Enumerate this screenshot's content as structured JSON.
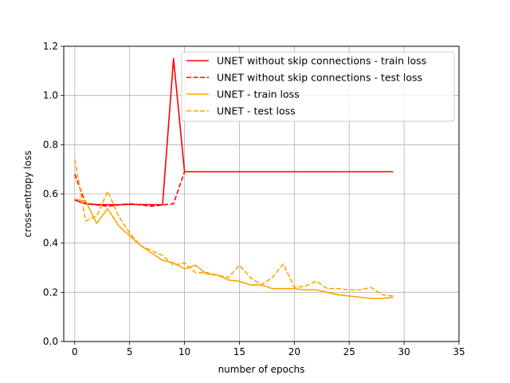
{
  "chart_data": {
    "type": "line",
    "xlabel": "number of epochs",
    "ylabel": "cross-entropy loss",
    "xlim": [
      -1,
      35
    ],
    "ylim": [
      0.0,
      1.2
    ],
    "xticks": [
      0,
      5,
      10,
      15,
      20,
      25,
      30,
      35
    ],
    "yticks": [
      0.0,
      0.2,
      0.4,
      0.6,
      0.8,
      1.0,
      1.2
    ],
    "grid": true,
    "legend_position": "top-right",
    "x": [
      0,
      1,
      2,
      3,
      4,
      5,
      6,
      7,
      8,
      9,
      10,
      11,
      12,
      13,
      14,
      15,
      16,
      17,
      18,
      19,
      20,
      21,
      22,
      23,
      24,
      25,
      26,
      27,
      28,
      29
    ],
    "series": [
      {
        "name": "UNET without skip connections - train loss",
        "color": "#ff0000",
        "dash": "solid",
        "values": [
          0.575,
          0.56,
          0.557,
          0.556,
          0.556,
          0.557,
          0.557,
          0.556,
          0.556,
          1.15,
          0.69,
          0.69,
          0.69,
          0.69,
          0.69,
          0.69,
          0.69,
          0.69,
          0.69,
          0.69,
          0.69,
          0.69,
          0.69,
          0.69,
          0.69,
          0.69,
          0.69,
          0.69,
          0.69,
          0.69
        ]
      },
      {
        "name": "UNET without skip connections - test loss",
        "color": "#ff0000",
        "dash": "dashed",
        "values": [
          0.68,
          0.56,
          0.555,
          0.55,
          0.555,
          0.56,
          0.555,
          0.55,
          0.555,
          0.56,
          0.69,
          0.69,
          0.69,
          0.69,
          0.69,
          0.69,
          0.69,
          0.69,
          0.69,
          0.69,
          0.69,
          0.69,
          0.69,
          0.69,
          0.69,
          0.69,
          0.69,
          0.69,
          0.69,
          0.69
        ]
      },
      {
        "name": "UNET - train loss",
        "color": "#ffa500",
        "dash": "solid",
        "values": [
          0.58,
          0.57,
          0.48,
          0.54,
          0.47,
          0.43,
          0.39,
          0.36,
          0.33,
          0.32,
          0.295,
          0.31,
          0.275,
          0.27,
          0.25,
          0.245,
          0.23,
          0.23,
          0.215,
          0.215,
          0.215,
          0.21,
          0.21,
          0.2,
          0.19,
          0.185,
          0.18,
          0.175,
          0.175,
          0.18
        ]
      },
      {
        "name": "UNET - test loss",
        "color": "#ffa500",
        "dash": "dashed",
        "values": [
          0.74,
          0.49,
          0.51,
          0.61,
          0.51,
          0.44,
          0.39,
          0.37,
          0.35,
          0.31,
          0.32,
          0.28,
          0.28,
          0.27,
          0.26,
          0.31,
          0.26,
          0.23,
          0.26,
          0.315,
          0.22,
          0.225,
          0.245,
          0.215,
          0.215,
          0.21,
          0.21,
          0.22,
          0.19,
          0.185
        ]
      }
    ]
  }
}
